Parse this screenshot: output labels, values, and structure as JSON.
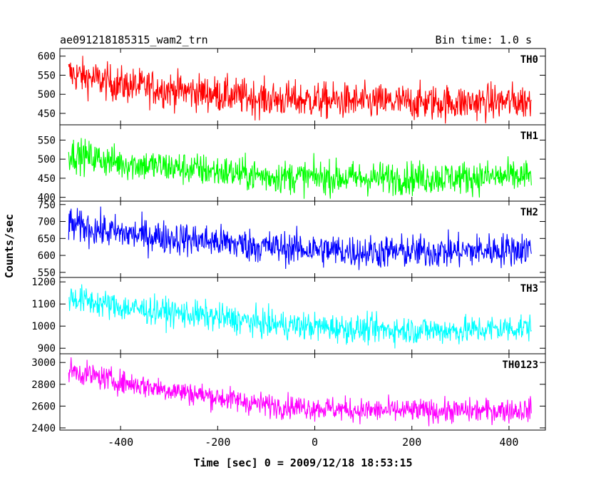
{
  "header": {
    "title": "ae091218185315_wam2_trn",
    "bin_time": "Bin time: 1.0 s"
  },
  "chart_data": {
    "type": "line",
    "title": "ae091218185315_wam2_trn",
    "xlabel": "Time [sec] 0 = 2009/12/18 18:53:15",
    "ylabel": "Counts/sec",
    "xlim": [
      -525,
      475
    ],
    "x_ticks": [
      -400,
      -200,
      0,
      200,
      400
    ],
    "x_range": [
      -507,
      446
    ],
    "grid": false,
    "panels": [
      {
        "name": "TH0",
        "color": "#ff0000",
        "ylim": [
          420,
          620
        ],
        "y_ticks": [
          450,
          500,
          550,
          600
        ],
        "trend": [
          [
            -507,
            555
          ],
          [
            -400,
            525
          ],
          [
            -200,
            500
          ],
          [
            -100,
            488
          ],
          [
            100,
            480
          ],
          [
            300,
            478
          ],
          [
            446,
            482
          ]
        ],
        "noise": 24
      },
      {
        "name": "TH1",
        "color": "#00ff00",
        "ylim": [
          390,
          590
        ],
        "y_ticks": [
          400,
          450,
          500,
          550
        ],
        "trend": [
          [
            -507,
            515
          ],
          [
            -400,
            490
          ],
          [
            -200,
            468
          ],
          [
            -100,
            455
          ],
          [
            100,
            450
          ],
          [
            300,
            452
          ],
          [
            446,
            455
          ]
        ],
        "noise": 22
      },
      {
        "name": "TH2",
        "color": "#0000ff",
        "ylim": [
          535,
          760
        ],
        "y_ticks": [
          550,
          600,
          650,
          700,
          750
        ],
        "trend": [
          [
            -507,
            690
          ],
          [
            -400,
            665
          ],
          [
            -200,
            640
          ],
          [
            -100,
            625
          ],
          [
            100,
            610
          ],
          [
            300,
            612
          ],
          [
            446,
            620
          ]
        ],
        "noise": 25
      },
      {
        "name": "TH3",
        "color": "#00ffff",
        "ylim": [
          875,
          1220
        ],
        "y_ticks": [
          900,
          1000,
          1100,
          1200
        ],
        "trend": [
          [
            -507,
            1130
          ],
          [
            -400,
            1085
          ],
          [
            -200,
            1040
          ],
          [
            -100,
            1010
          ],
          [
            100,
            985
          ],
          [
            300,
            980
          ],
          [
            446,
            995
          ]
        ],
        "noise": 32
      },
      {
        "name": "TH0123",
        "color": "#ff00ff",
        "ylim": [
          2380,
          3080
        ],
        "y_ticks": [
          2400,
          2600,
          2800,
          3000
        ],
        "trend": [
          [
            -507,
            2930
          ],
          [
            -400,
            2820
          ],
          [
            -200,
            2680
          ],
          [
            -100,
            2610
          ],
          [
            100,
            2560
          ],
          [
            300,
            2555
          ],
          [
            446,
            2565
          ]
        ],
        "noise": 55
      }
    ]
  }
}
